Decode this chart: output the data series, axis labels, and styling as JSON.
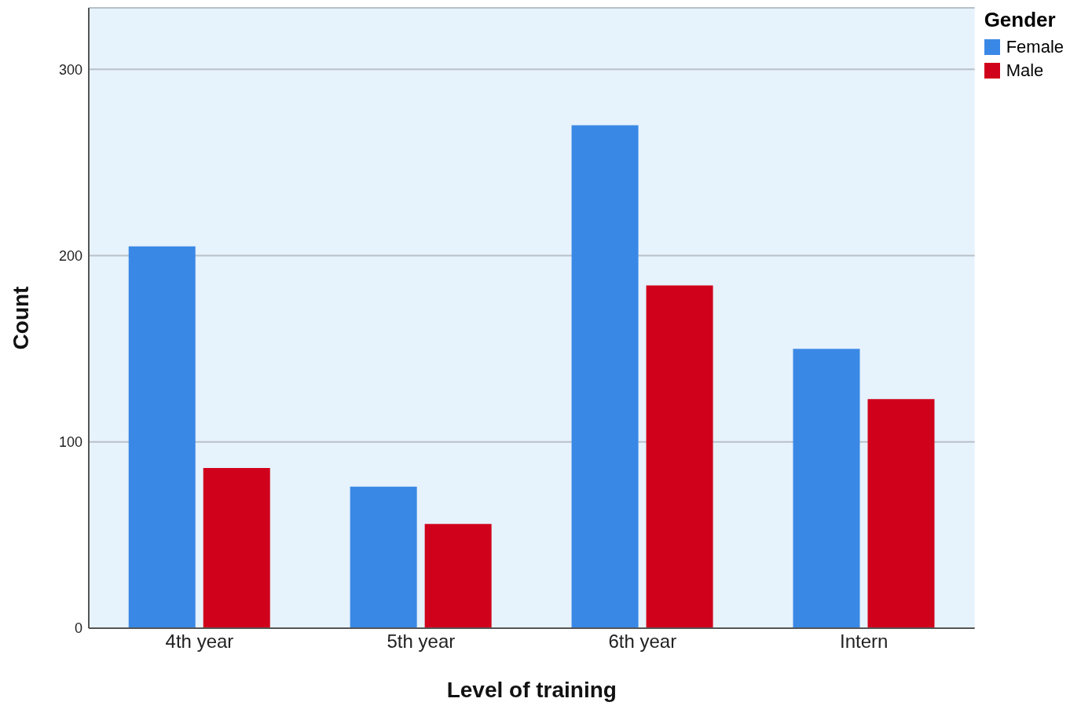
{
  "chart_data": {
    "type": "bar",
    "xlabel": "Level of training",
    "ylabel": "Count",
    "legend_title": "Gender",
    "categories": [
      "4th year",
      "5th year",
      "6th year",
      "Intern"
    ],
    "series": [
      {
        "name": "Female",
        "color": "#3a88e6",
        "values": [
          205,
          76,
          270,
          150
        ]
      },
      {
        "name": "Male",
        "color": "#d0021b",
        "values": [
          86,
          56,
          184,
          123
        ]
      }
    ],
    "ylim": [
      0,
      333
    ],
    "yticks": [
      0,
      100,
      200,
      300
    ],
    "grid": "y",
    "legend": "top right"
  }
}
